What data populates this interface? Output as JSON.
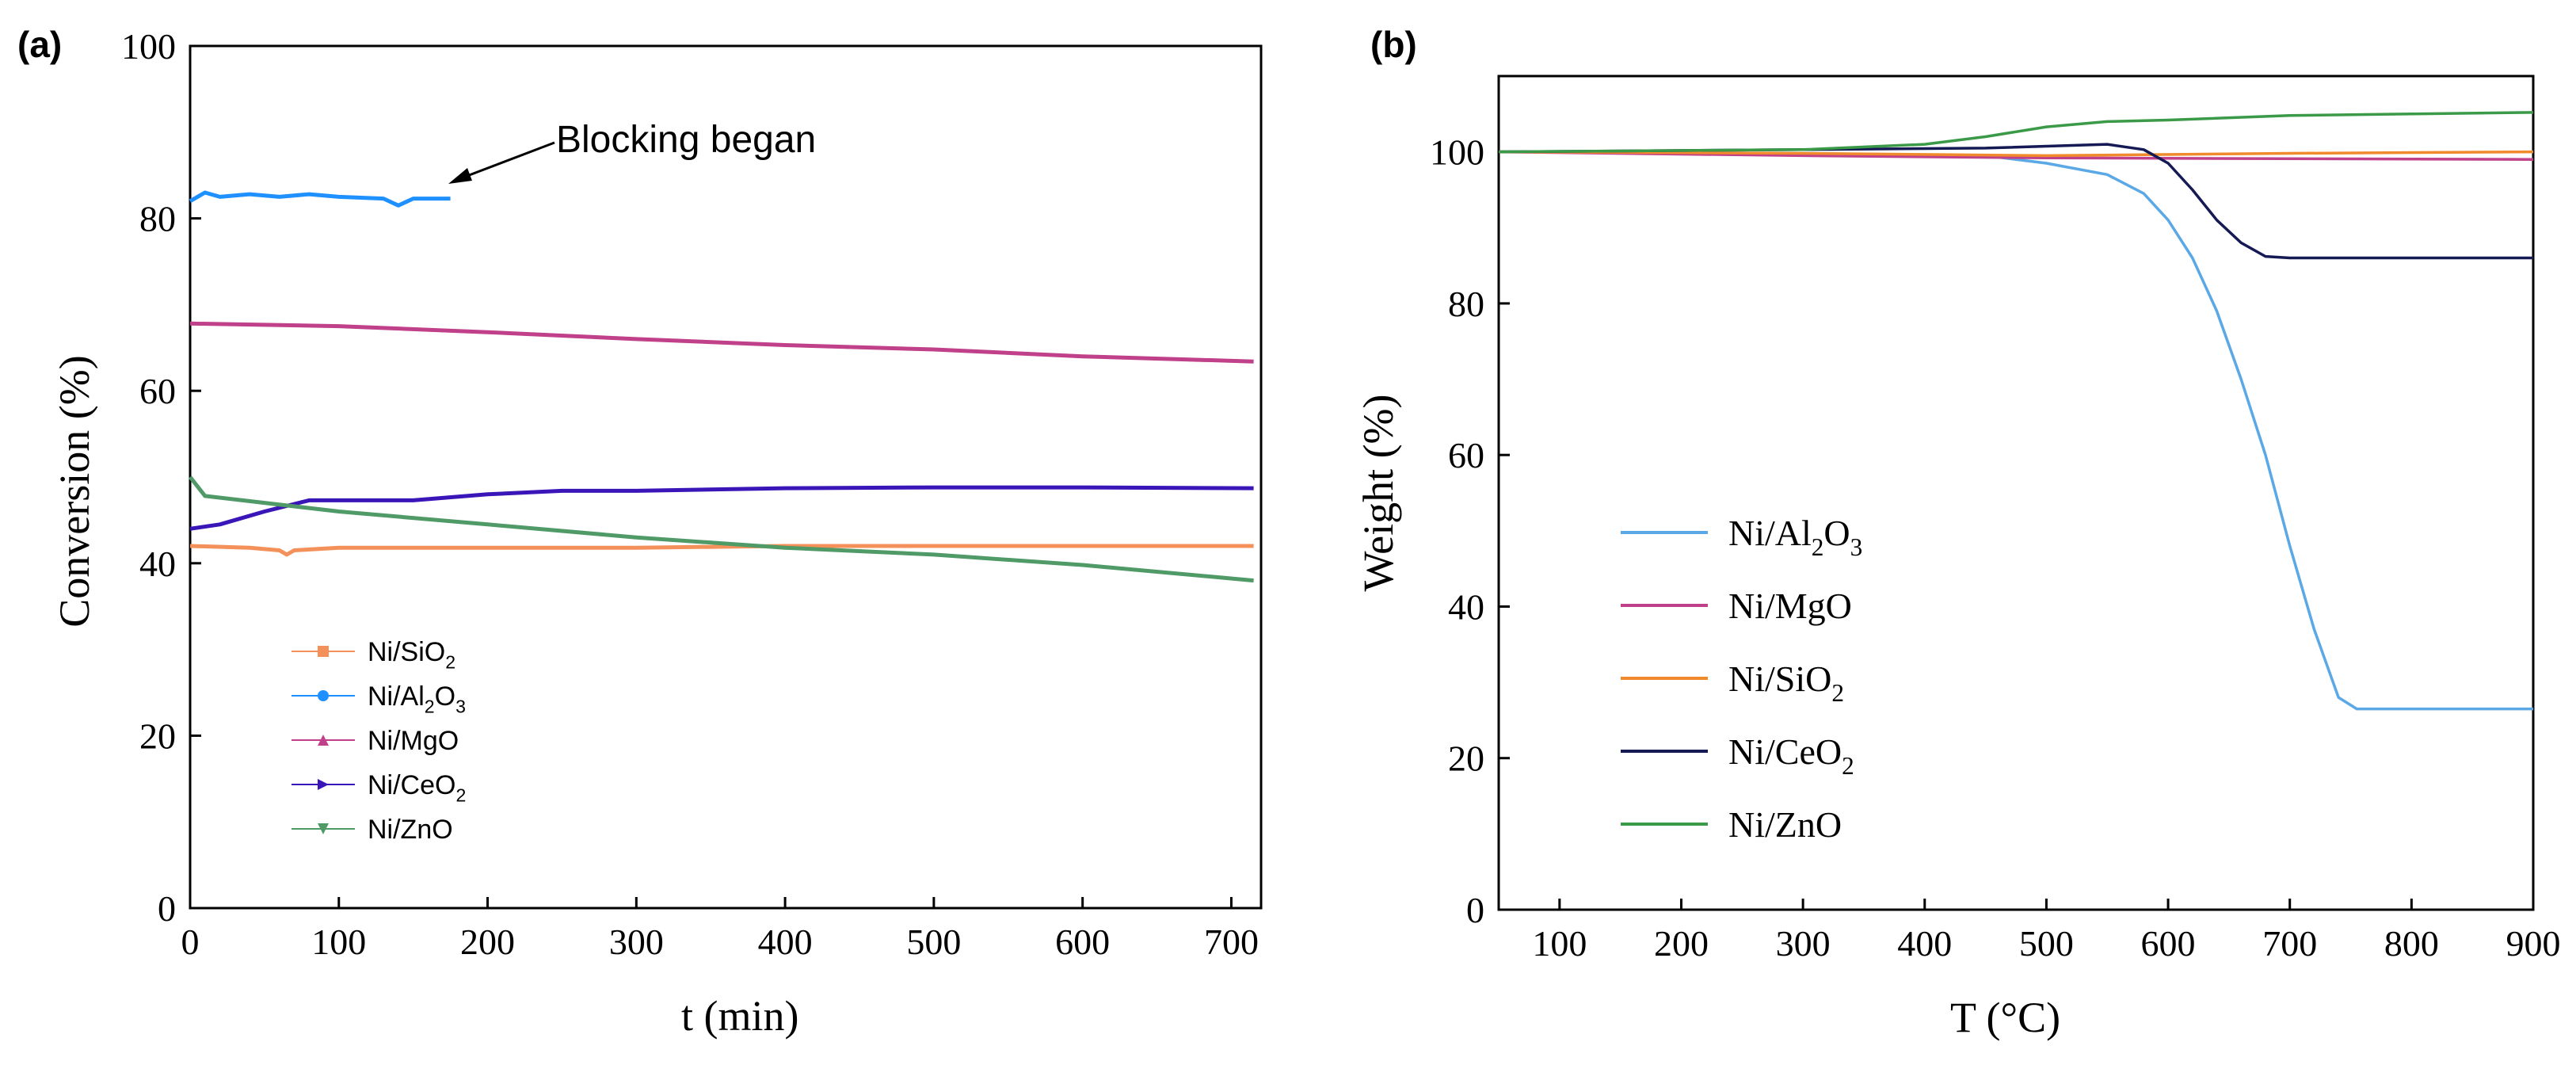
{
  "chart_data": [
    {
      "panel_label": "(a)",
      "type": "line",
      "xlabel": "t (min)",
      "ylabel": "Conversion (%)",
      "xlim": [
        0,
        720
      ],
      "ylim": [
        0,
        100
      ],
      "xticks": [
        0,
        100,
        200,
        300,
        400,
        500,
        600,
        700
      ],
      "yticks": [
        0,
        20,
        40,
        60,
        80,
        100
      ],
      "legend_position": "lower-left",
      "annotation": {
        "text": "Blocking began",
        "x": 175,
        "y": 82
      },
      "series": [
        {
          "name": "Ni/SiO₂",
          "label_main": "Ni/SiO",
          "label_parts": [
            "Ni/SiO",
            "2"
          ],
          "color": "#f4915a",
          "marker": "square",
          "x": [
            0,
            40,
            60,
            65,
            70,
            100,
            200,
            300,
            400,
            500,
            600,
            715
          ],
          "y": [
            42,
            41.8,
            41.5,
            41,
            41.5,
            41.8,
            41.8,
            41.8,
            42,
            42,
            42,
            42
          ]
        },
        {
          "name": "Ni/Al₂O₃",
          "label_main": "Ni/Al2O3",
          "label_parts": [
            "Ni/Al",
            "2",
            "O",
            "3"
          ],
          "color": "#1e90ff",
          "marker": "circle",
          "x": [
            0,
            10,
            20,
            40,
            60,
            80,
            100,
            130,
            140,
            150,
            175
          ],
          "y": [
            82,
            83,
            82.5,
            82.8,
            82.5,
            82.8,
            82.5,
            82.3,
            81.5,
            82.3,
            82.3
          ]
        },
        {
          "name": "Ni/MgO",
          "label_main": "Ni/MgO",
          "label_parts": [
            "Ni/MgO"
          ],
          "color": "#c0408a",
          "marker": "triangle-up",
          "x": [
            0,
            100,
            200,
            300,
            400,
            500,
            600,
            715
          ],
          "y": [
            67.8,
            67.5,
            66.8,
            66,
            65.3,
            64.8,
            64,
            63.4
          ]
        },
        {
          "name": "Ni/CeO₂",
          "label_main": "Ni/CeO",
          "label_parts": [
            "Ni/CeO",
            "2"
          ],
          "color": "#3a16b8",
          "marker": "triangle-right",
          "x": [
            0,
            20,
            50,
            80,
            150,
            200,
            250,
            300,
            400,
            500,
            600,
            715
          ],
          "y": [
            44,
            44.5,
            46,
            47.3,
            47.3,
            48,
            48.4,
            48.4,
            48.7,
            48.8,
            48.8,
            48.7
          ]
        },
        {
          "name": "Ni/ZnO",
          "label_main": "Ni/ZnO",
          "label_parts": [
            "Ni/ZnO"
          ],
          "color": "#4f9a66",
          "marker": "triangle-down",
          "x": [
            0,
            10,
            100,
            200,
            300,
            400,
            500,
            600,
            715
          ],
          "y": [
            50,
            47.8,
            46,
            44.5,
            43,
            41.8,
            41,
            39.8,
            38
          ]
        }
      ]
    },
    {
      "panel_label": "(b)",
      "type": "line",
      "xlabel": "T (°C)",
      "ylabel": "Weight (%)",
      "xlim": [
        50,
        900
      ],
      "ylim": [
        0,
        110
      ],
      "xticks": [
        100,
        200,
        300,
        400,
        500,
        600,
        700,
        800,
        900
      ],
      "yticks": [
        0,
        20,
        40,
        60,
        80,
        100
      ],
      "legend_position": "lower-left",
      "series": [
        {
          "name": "Ni/Al₂O₃",
          "label_parts": [
            "Ni/Al",
            "2",
            "O",
            "3"
          ],
          "color": "#5aa8e6",
          "x": [
            50,
            300,
            450,
            500,
            550,
            580,
            600,
            620,
            640,
            660,
            680,
            700,
            720,
            740,
            755,
            900
          ],
          "y": [
            100,
            99.8,
            99.5,
            98.5,
            97,
            94.5,
            91,
            86,
            79,
            70,
            60,
            48,
            37,
            28,
            26.5,
            26.5
          ]
        },
        {
          "name": "Ni/MgO",
          "label_parts": [
            "Ni/MgO"
          ],
          "color": "#c0408a",
          "x": [
            50,
            300,
            500,
            900
          ],
          "y": [
            100,
            99.5,
            99.2,
            99
          ]
        },
        {
          "name": "Ni/SiO₂",
          "label_parts": [
            "Ni/SiO",
            "2"
          ],
          "color": "#f08a2c",
          "x": [
            50,
            300,
            500,
            700,
            900
          ],
          "y": [
            100,
            99.8,
            99.5,
            99.8,
            100
          ]
        },
        {
          "name": "Ni/CeO₂",
          "label_parts": [
            "Ni/CeO",
            "2"
          ],
          "color": "#151a55",
          "x": [
            50,
            300,
            450,
            550,
            580,
            600,
            620,
            640,
            660,
            680,
            700,
            900
          ],
          "y": [
            100,
            100.3,
            100.5,
            101,
            100.3,
            98.5,
            95,
            91,
            88,
            86.2,
            86,
            86
          ]
        },
        {
          "name": "Ni/ZnO",
          "label_parts": [
            "Ni/ZnO"
          ],
          "color": "#3a9a48",
          "x": [
            50,
            300,
            400,
            450,
            500,
            550,
            600,
            700,
            800,
            900
          ],
          "y": [
            100,
            100.3,
            101,
            102,
            103.3,
            104,
            104.2,
            104.8,
            105,
            105.2
          ]
        }
      ]
    }
  ]
}
